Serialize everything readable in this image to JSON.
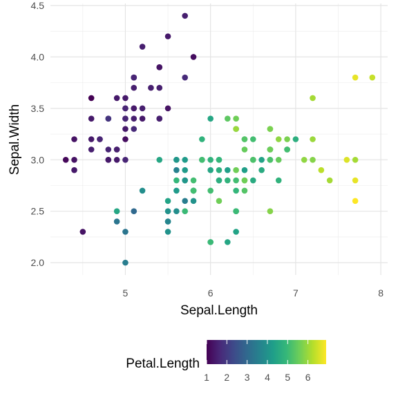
{
  "chart_data": {
    "type": "scatter",
    "xlabel": "Sepal.Length",
    "ylabel": "Sepal.Width",
    "xlim": [
      4.3,
      7.9
    ],
    "ylim": [
      2.0,
      4.4
    ],
    "xticks": [
      5,
      6,
      7,
      8
    ],
    "yticks": [
      2.0,
      2.5,
      3.0,
      3.5,
      4.0,
      4.5
    ],
    "xtick_labels": [
      "5",
      "6",
      "7",
      "8"
    ],
    "ytick_labels": [
      "2.0",
      "2.5",
      "3.0",
      "3.5",
      "4.0",
      "4.5"
    ],
    "grid": true,
    "legend_position": "bottom",
    "color_scale": {
      "name": "viridis",
      "title": "Petal.Length",
      "min": 1.0,
      "max": 6.9,
      "breaks": [
        1,
        2,
        3,
        4,
        5,
        6
      ],
      "break_labels": [
        "1",
        "2",
        "3",
        "4",
        "5",
        "6"
      ],
      "stops": [
        "#440154",
        "#482878",
        "#3e4989",
        "#31688e",
        "#26828e",
        "#1f9e89",
        "#35b779",
        "#6ece58",
        "#b5de2b",
        "#fde725"
      ]
    },
    "points": [
      {
        "x": 5.1,
        "y": 3.5,
        "c": 1.4
      },
      {
        "x": 4.9,
        "y": 3.0,
        "c": 1.4
      },
      {
        "x": 4.7,
        "y": 3.2,
        "c": 1.3
      },
      {
        "x": 4.6,
        "y": 3.1,
        "c": 1.5
      },
      {
        "x": 5.0,
        "y": 3.6,
        "c": 1.4
      },
      {
        "x": 5.4,
        "y": 3.9,
        "c": 1.7
      },
      {
        "x": 4.6,
        "y": 3.4,
        "c": 1.4
      },
      {
        "x": 5.0,
        "y": 3.4,
        "c": 1.5
      },
      {
        "x": 4.4,
        "y": 2.9,
        "c": 1.4
      },
      {
        "x": 4.9,
        "y": 3.1,
        "c": 1.5
      },
      {
        "x": 5.4,
        "y": 3.7,
        "c": 1.5
      },
      {
        "x": 4.8,
        "y": 3.4,
        "c": 1.6
      },
      {
        "x": 4.8,
        "y": 3.0,
        "c": 1.4
      },
      {
        "x": 4.3,
        "y": 3.0,
        "c": 1.1
      },
      {
        "x": 5.8,
        "y": 4.0,
        "c": 1.2
      },
      {
        "x": 5.7,
        "y": 4.4,
        "c": 1.5
      },
      {
        "x": 5.4,
        "y": 3.9,
        "c": 1.3
      },
      {
        "x": 5.1,
        "y": 3.5,
        "c": 1.4
      },
      {
        "x": 5.7,
        "y": 3.8,
        "c": 1.7
      },
      {
        "x": 5.1,
        "y": 3.8,
        "c": 1.5
      },
      {
        "x": 5.4,
        "y": 3.4,
        "c": 1.7
      },
      {
        "x": 5.1,
        "y": 3.7,
        "c": 1.5
      },
      {
        "x": 4.6,
        "y": 3.6,
        "c": 1.0
      },
      {
        "x": 5.1,
        "y": 3.3,
        "c": 1.7
      },
      {
        "x": 4.8,
        "y": 3.4,
        "c": 1.9
      },
      {
        "x": 5.0,
        "y": 3.0,
        "c": 1.6
      },
      {
        "x": 5.0,
        "y": 3.4,
        "c": 1.6
      },
      {
        "x": 5.2,
        "y": 3.5,
        "c": 1.5
      },
      {
        "x": 5.2,
        "y": 3.4,
        "c": 1.4
      },
      {
        "x": 4.7,
        "y": 3.2,
        "c": 1.6
      },
      {
        "x": 4.8,
        "y": 3.1,
        "c": 1.6
      },
      {
        "x": 5.4,
        "y": 3.4,
        "c": 1.5
      },
      {
        "x": 5.2,
        "y": 4.1,
        "c": 1.5
      },
      {
        "x": 5.5,
        "y": 4.2,
        "c": 1.4
      },
      {
        "x": 4.9,
        "y": 3.1,
        "c": 1.5
      },
      {
        "x": 5.0,
        "y": 3.2,
        "c": 1.2
      },
      {
        "x": 5.5,
        "y": 3.5,
        "c": 1.3
      },
      {
        "x": 4.9,
        "y": 3.6,
        "c": 1.4
      },
      {
        "x": 4.4,
        "y": 3.0,
        "c": 1.3
      },
      {
        "x": 5.1,
        "y": 3.4,
        "c": 1.5
      },
      {
        "x": 5.0,
        "y": 3.5,
        "c": 1.3
      },
      {
        "x": 4.5,
        "y": 2.3,
        "c": 1.3
      },
      {
        "x": 4.4,
        "y": 3.2,
        "c": 1.3
      },
      {
        "x": 5.0,
        "y": 3.5,
        "c": 1.6
      },
      {
        "x": 5.1,
        "y": 3.8,
        "c": 1.9
      },
      {
        "x": 4.8,
        "y": 3.0,
        "c": 1.4
      },
      {
        "x": 5.1,
        "y": 3.8,
        "c": 1.6
      },
      {
        "x": 4.6,
        "y": 3.2,
        "c": 1.4
      },
      {
        "x": 5.3,
        "y": 3.7,
        "c": 1.5
      },
      {
        "x": 5.0,
        "y": 3.3,
        "c": 1.4
      },
      {
        "x": 7.0,
        "y": 3.2,
        "c": 4.7
      },
      {
        "x": 6.4,
        "y": 3.2,
        "c": 4.5
      },
      {
        "x": 6.9,
        "y": 3.1,
        "c": 4.9
      },
      {
        "x": 5.5,
        "y": 2.3,
        "c": 4.0
      },
      {
        "x": 6.5,
        "y": 2.8,
        "c": 4.6
      },
      {
        "x": 5.7,
        "y": 2.8,
        "c": 4.5
      },
      {
        "x": 6.3,
        "y": 3.3,
        "c": 4.7
      },
      {
        "x": 4.9,
        "y": 2.4,
        "c": 3.3
      },
      {
        "x": 6.6,
        "y": 2.9,
        "c": 4.6
      },
      {
        "x": 5.2,
        "y": 2.7,
        "c": 3.9
      },
      {
        "x": 5.0,
        "y": 2.0,
        "c": 3.5
      },
      {
        "x": 5.9,
        "y": 3.0,
        "c": 4.2
      },
      {
        "x": 6.0,
        "y": 2.2,
        "c": 4.0
      },
      {
        "x": 6.1,
        "y": 2.9,
        "c": 4.7
      },
      {
        "x": 5.6,
        "y": 2.9,
        "c": 3.6
      },
      {
        "x": 6.7,
        "y": 3.1,
        "c": 4.4
      },
      {
        "x": 5.6,
        "y": 3.0,
        "c": 4.5
      },
      {
        "x": 5.8,
        "y": 2.7,
        "c": 4.1
      },
      {
        "x": 6.2,
        "y": 2.2,
        "c": 4.5
      },
      {
        "x": 5.6,
        "y": 2.5,
        "c": 3.9
      },
      {
        "x": 5.9,
        "y": 3.2,
        "c": 4.8
      },
      {
        "x": 6.1,
        "y": 2.8,
        "c": 4.0
      },
      {
        "x": 6.3,
        "y": 2.5,
        "c": 4.9
      },
      {
        "x": 6.1,
        "y": 2.8,
        "c": 4.7
      },
      {
        "x": 6.4,
        "y": 2.9,
        "c": 4.3
      },
      {
        "x": 6.6,
        "y": 3.0,
        "c": 4.4
      },
      {
        "x": 6.8,
        "y": 2.8,
        "c": 4.8
      },
      {
        "x": 6.7,
        "y": 3.0,
        "c": 5.0
      },
      {
        "x": 6.0,
        "y": 2.9,
        "c": 4.5
      },
      {
        "x": 5.7,
        "y": 2.6,
        "c": 3.5
      },
      {
        "x": 5.5,
        "y": 2.4,
        "c": 3.8
      },
      {
        "x": 5.5,
        "y": 2.4,
        "c": 3.7
      },
      {
        "x": 5.8,
        "y": 2.7,
        "c": 3.9
      },
      {
        "x": 6.0,
        "y": 2.7,
        "c": 5.1
      },
      {
        "x": 5.4,
        "y": 3.0,
        "c": 4.5
      },
      {
        "x": 6.0,
        "y": 3.4,
        "c": 4.5
      },
      {
        "x": 6.7,
        "y": 3.1,
        "c": 4.7
      },
      {
        "x": 6.3,
        "y": 2.3,
        "c": 4.4
      },
      {
        "x": 5.6,
        "y": 3.0,
        "c": 4.1
      },
      {
        "x": 5.5,
        "y": 2.5,
        "c": 4.0
      },
      {
        "x": 5.5,
        "y": 2.6,
        "c": 4.4
      },
      {
        "x": 6.1,
        "y": 3.0,
        "c": 4.6
      },
      {
        "x": 5.8,
        "y": 2.6,
        "c": 4.0
      },
      {
        "x": 5.0,
        "y": 2.3,
        "c": 3.3
      },
      {
        "x": 5.6,
        "y": 2.7,
        "c": 4.2
      },
      {
        "x": 5.7,
        "y": 3.0,
        "c": 4.2
      },
      {
        "x": 5.7,
        "y": 2.9,
        "c": 4.2
      },
      {
        "x": 6.2,
        "y": 2.9,
        "c": 4.3
      },
      {
        "x": 5.1,
        "y": 2.5,
        "c": 3.0
      },
      {
        "x": 5.7,
        "y": 2.8,
        "c": 4.1
      },
      {
        "x": 6.3,
        "y": 3.3,
        "c": 6.0
      },
      {
        "x": 5.8,
        "y": 2.7,
        "c": 5.1
      },
      {
        "x": 7.1,
        "y": 3.0,
        "c": 5.9
      },
      {
        "x": 6.3,
        "y": 2.9,
        "c": 5.6
      },
      {
        "x": 6.5,
        "y": 3.0,
        "c": 5.8
      },
      {
        "x": 7.6,
        "y": 3.0,
        "c": 6.6
      },
      {
        "x": 4.9,
        "y": 2.5,
        "c": 4.5
      },
      {
        "x": 7.3,
        "y": 2.9,
        "c": 6.3
      },
      {
        "x": 6.7,
        "y": 2.5,
        "c": 5.8
      },
      {
        "x": 7.2,
        "y": 3.6,
        "c": 6.1
      },
      {
        "x": 6.5,
        "y": 3.2,
        "c": 5.1
      },
      {
        "x": 6.4,
        "y": 2.7,
        "c": 5.3
      },
      {
        "x": 6.8,
        "y": 3.0,
        "c": 5.5
      },
      {
        "x": 5.7,
        "y": 2.5,
        "c": 5.0
      },
      {
        "x": 5.8,
        "y": 2.8,
        "c": 5.1
      },
      {
        "x": 6.4,
        "y": 3.2,
        "c": 5.3
      },
      {
        "x": 6.5,
        "y": 3.0,
        "c": 5.5
      },
      {
        "x": 7.7,
        "y": 3.8,
        "c": 6.7
      },
      {
        "x": 7.7,
        "y": 2.6,
        "c": 6.9
      },
      {
        "x": 6.0,
        "y": 2.2,
        "c": 5.0
      },
      {
        "x": 6.9,
        "y": 3.2,
        "c": 5.7
      },
      {
        "x": 5.6,
        "y": 2.8,
        "c": 4.9
      },
      {
        "x": 7.7,
        "y": 2.8,
        "c": 6.7
      },
      {
        "x": 6.3,
        "y": 2.7,
        "c": 4.9
      },
      {
        "x": 6.7,
        "y": 3.3,
        "c": 5.7
      },
      {
        "x": 7.2,
        "y": 3.2,
        "c": 6.0
      },
      {
        "x": 6.2,
        "y": 2.8,
        "c": 4.8
      },
      {
        "x": 6.1,
        "y": 3.0,
        "c": 4.9
      },
      {
        "x": 6.4,
        "y": 2.8,
        "c": 5.6
      },
      {
        "x": 7.2,
        "y": 3.0,
        "c": 5.8
      },
      {
        "x": 7.4,
        "y": 2.8,
        "c": 6.1
      },
      {
        "x": 7.9,
        "y": 3.8,
        "c": 6.4
      },
      {
        "x": 6.4,
        "y": 2.8,
        "c": 5.6
      },
      {
        "x": 6.3,
        "y": 2.8,
        "c": 5.1
      },
      {
        "x": 6.1,
        "y": 2.6,
        "c": 5.6
      },
      {
        "x": 7.7,
        "y": 3.0,
        "c": 6.1
      },
      {
        "x": 6.3,
        "y": 3.4,
        "c": 5.6
      },
      {
        "x": 6.4,
        "y": 3.1,
        "c": 5.5
      },
      {
        "x": 6.0,
        "y": 3.0,
        "c": 4.8
      },
      {
        "x": 6.9,
        "y": 3.1,
        "c": 5.4
      },
      {
        "x": 6.7,
        "y": 3.1,
        "c": 5.6
      },
      {
        "x": 6.9,
        "y": 3.1,
        "c": 5.1
      },
      {
        "x": 5.8,
        "y": 2.7,
        "c": 5.1
      },
      {
        "x": 6.8,
        "y": 3.2,
        "c": 5.9
      },
      {
        "x": 6.7,
        "y": 3.3,
        "c": 5.7
      },
      {
        "x": 6.7,
        "y": 3.0,
        "c": 5.2
      },
      {
        "x": 6.3,
        "y": 2.5,
        "c": 5.0
      },
      {
        "x": 6.5,
        "y": 3.0,
        "c": 5.2
      },
      {
        "x": 6.2,
        "y": 3.4,
        "c": 5.4
      },
      {
        "x": 5.9,
        "y": 3.0,
        "c": 5.1
      }
    ]
  }
}
